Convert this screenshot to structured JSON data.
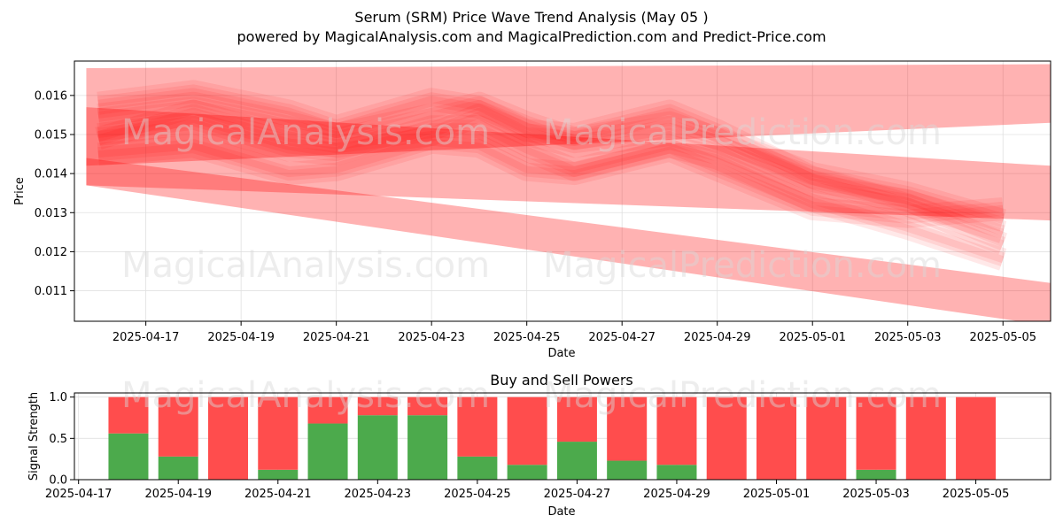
{
  "header": {
    "title": "Serum (SRM) Price Wave Trend Analysis (May 05 )",
    "subtitle": "powered by MagicalAnalysis.com and MagicalPrediction.com and Predict-Price.com"
  },
  "watermarks": [
    "MagicalAnalysis.com",
    "MagicalPrediction.com"
  ],
  "chart_data": [
    {
      "type": "area",
      "title": "",
      "xlabel": "Date",
      "ylabel": "Price",
      "x_ticks": [
        "2025-04-17",
        "2025-04-19",
        "2025-04-21",
        "2025-04-23",
        "2025-04-25",
        "2025-04-27",
        "2025-04-29",
        "2025-05-01",
        "2025-05-03",
        "2025-05-05"
      ],
      "y_ticks": [
        "0.011",
        "0.012",
        "0.013",
        "0.014",
        "0.015",
        "0.016"
      ],
      "xlim": [
        "2025-04-15T12:00",
        "2025-05-06T00:00"
      ],
      "ylim": [
        0.01022,
        0.01688
      ],
      "grid": true,
      "band_color": "#ff0000",
      "trend_bands": [
        {
          "start": "2025-04-15T18:00",
          "end": "2025-05-06T00:00",
          "upper": [
            0.0167,
            0.0168
          ],
          "lower": [
            0.0142,
            0.0153
          ]
        },
        {
          "start": "2025-04-15T18:00",
          "end": "2025-05-06T00:00",
          "upper": [
            0.0157,
            0.0142
          ],
          "lower": [
            0.0137,
            0.0128
          ]
        },
        {
          "start": "2025-04-15T18:00",
          "end": "2025-05-06T00:00",
          "upper": [
            0.0144,
            0.0112
          ],
          "lower": [
            0.0137,
            0.0101
          ]
        }
      ],
      "wave_series": [
        {
          "x": [
            "2025-04-16",
            "2025-04-18",
            "2025-04-20",
            "2025-04-21",
            "2025-04-23",
            "2025-04-24",
            "2025-04-25",
            "2025-04-26",
            "2025-04-28",
            "2025-04-29",
            "2025-05-01",
            "2025-05-03",
            "2025-05-05"
          ],
          "y": [
            0.0155,
            0.0158,
            0.0153,
            0.015,
            0.0155,
            0.0158,
            0.0153,
            0.0149,
            0.0153,
            0.0149,
            0.014,
            0.0135,
            0.0128
          ]
        },
        {
          "x": [
            "2025-04-16",
            "2025-04-18",
            "2025-04-20",
            "2025-04-21",
            "2025-04-23",
            "2025-04-24",
            "2025-04-25",
            "2025-04-26",
            "2025-04-28",
            "2025-04-29",
            "2025-05-01",
            "2025-05-03",
            "2025-05-05"
          ],
          "y": [
            0.015,
            0.0153,
            0.0146,
            0.0145,
            0.0152,
            0.0152,
            0.0146,
            0.0141,
            0.0147,
            0.0144,
            0.0133,
            0.0126,
            0.0118
          ]
        },
        {
          "x": [
            "2025-04-16",
            "2025-04-18",
            "2025-04-20",
            "2025-04-21",
            "2025-04-23",
            "2025-04-24",
            "2025-04-25",
            "2025-04-26",
            "2025-04-28",
            "2025-04-29",
            "2025-05-01",
            "2025-05-03",
            "2025-05-05"
          ],
          "y": [
            0.0145,
            0.0147,
            0.014,
            0.0141,
            0.0148,
            0.0147,
            0.0141,
            0.014,
            0.0146,
            0.0141,
            0.0131,
            0.0129,
            0.0131
          ]
        },
        {
          "x": [
            "2025-04-16",
            "2025-04-18",
            "2025-04-20",
            "2025-04-21",
            "2025-04-23",
            "2025-04-24",
            "2025-04-25",
            "2025-04-26",
            "2025-04-28",
            "2025-04-29",
            "2025-05-01",
            "2025-05-03",
            "2025-05-05"
          ],
          "y": [
            0.0158,
            0.0161,
            0.0156,
            0.0152,
            0.0159,
            0.0157,
            0.0151,
            0.015,
            0.0156,
            0.0151,
            0.0139,
            0.0132,
            0.0122
          ]
        },
        {
          "x": [
            "2025-04-16",
            "2025-04-18",
            "2025-04-20",
            "2025-04-21",
            "2025-04-23",
            "2025-04-24",
            "2025-04-25",
            "2025-04-26",
            "2025-04-28",
            "2025-04-29",
            "2025-05-01",
            "2025-05-03",
            "2025-05-05"
          ],
          "y": [
            0.0149,
            0.0156,
            0.0149,
            0.0147,
            0.015,
            0.0155,
            0.015,
            0.0147,
            0.015,
            0.0147,
            0.0137,
            0.0133,
            0.0125
          ]
        }
      ]
    },
    {
      "type": "bar",
      "title": "Buy and Sell Powers",
      "xlabel": "Date",
      "ylabel": "Signal Strength",
      "categories": [
        "2025-04-18",
        "2025-04-19",
        "2025-04-20",
        "2025-04-21",
        "2025-04-22",
        "2025-04-23",
        "2025-04-24",
        "2025-04-25",
        "2025-04-26",
        "2025-04-27",
        "2025-04-28",
        "2025-04-29",
        "2025-04-30",
        "2025-05-01",
        "2025-05-02",
        "2025-05-03",
        "2025-05-04",
        "2025-05-05"
      ],
      "x_ticks": [
        "2025-04-17",
        "2025-04-19",
        "2025-04-21",
        "2025-04-23",
        "2025-04-25",
        "2025-04-27",
        "2025-04-29",
        "2025-05-01",
        "2025-05-03",
        "2025-05-05"
      ],
      "y_ticks": [
        "0.0",
        "0.5",
        "1.0"
      ],
      "xlim": [
        "2025-04-16T22:00",
        "2025-05-06T12:00"
      ],
      "ylim": [
        0,
        1.05
      ],
      "grid": true,
      "stacked": true,
      "series": [
        {
          "color": "#4caa4c",
          "values": [
            0.56,
            0.28,
            0.0,
            0.12,
            0.68,
            0.78,
            0.78,
            0.28,
            0.18,
            0.46,
            0.23,
            0.18,
            0.0,
            0.0,
            0.0,
            0.12,
            0.0,
            0.0
          ]
        },
        {
          "color": "#ff4d4d",
          "values": [
            0.44,
            0.72,
            1.0,
            0.88,
            0.32,
            0.22,
            0.22,
            0.72,
            0.82,
            0.54,
            0.77,
            0.82,
            1.0,
            1.0,
            1.0,
            0.88,
            1.0,
            1.0
          ]
        }
      ]
    }
  ]
}
